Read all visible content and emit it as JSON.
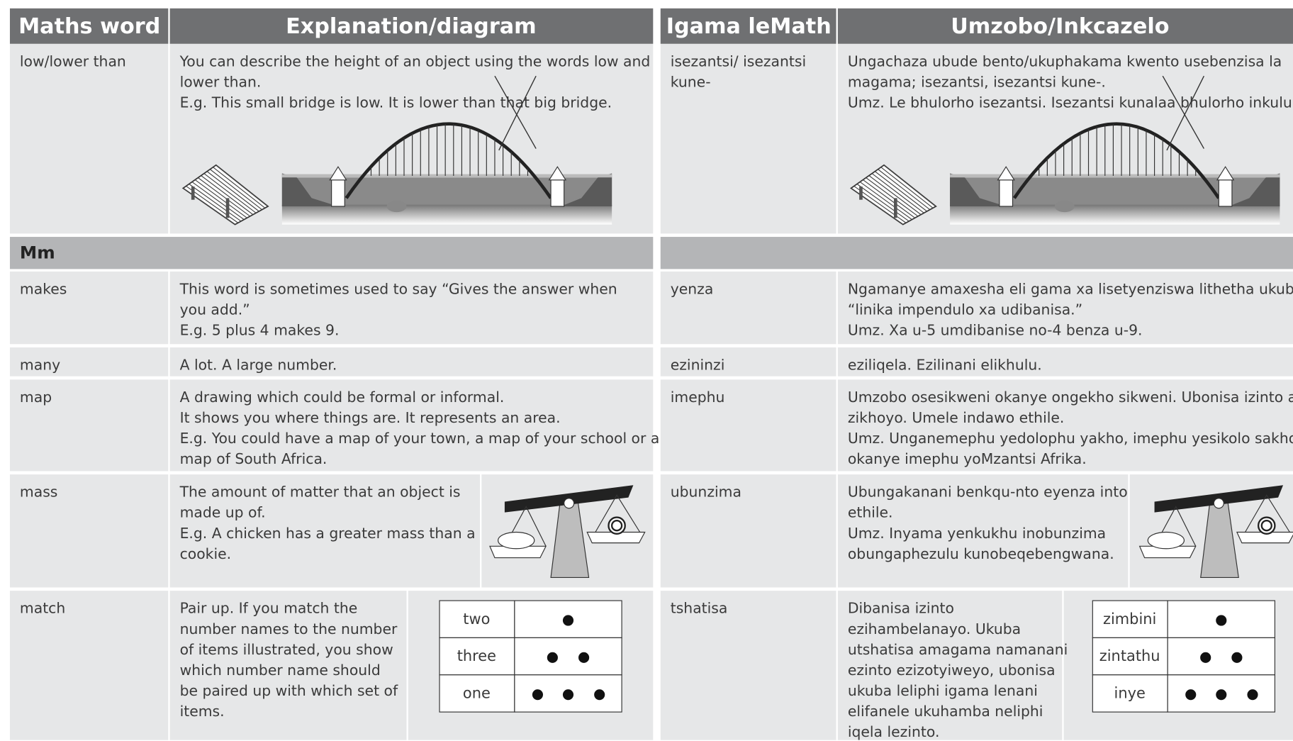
{
  "left": {
    "headers": [
      "Maths word",
      "Explanation/diagram"
    ],
    "section": "Mm",
    "rows": [
      {
        "word": [
          "low/lower than"
        ],
        "lines": [
          "You can describe the height of an object using the words low and",
          "lower than.",
          "E.g. This small bridge is low. It is lower than that big bridge."
        ]
      },
      {
        "word": [
          "makes"
        ],
        "lines": [
          "This word is sometimes used to say “Gives the answer when",
          "you add.”",
          "E.g. 5 plus 4 makes 9."
        ]
      },
      {
        "word": [
          "many"
        ],
        "lines": [
          "A lot. A large number."
        ]
      },
      {
        "word": [
          "map"
        ],
        "lines": [
          "A drawing which could be formal or informal.",
          "It shows you where things are. It represents an area.",
          "E.g. You could have a map of your town, a map of your school or a",
          "map of South Africa."
        ]
      },
      {
        "word": [
          "mass"
        ],
        "lines": [
          "The amount of matter that an object is",
          "made up of.",
          "E.g. A chicken has a greater mass than a",
          "cookie."
        ]
      },
      {
        "word": [
          "match"
        ],
        "lines": [
          "Pair up. If you match the",
          "number names to the number",
          "of items illustrated, you show",
          "which number name should",
          "be paired up with which set of",
          "items."
        ]
      }
    ],
    "match_table": [
      "two",
      "three",
      "one"
    ]
  },
  "right": {
    "headers": [
      "Igama leMath",
      "Umzobo/Inkcazelo"
    ],
    "rows": [
      {
        "word": [
          "isezantsi/ isezantsi",
          "kune-"
        ],
        "lines": [
          "Ungachaza ubude bento/ukuphakama kwento usebenzisa la",
          "magama; isezantsi, isezantsi kune-.",
          "Umz. Le bhulorho isezantsi. Isezantsi kunalaa bhulorho inkulu."
        ]
      },
      {
        "word": [
          "yenza"
        ],
        "lines": [
          "Ngamanye amaxesha eli gama xa lisetyenziswa lithetha ukuba",
          "“linika impendulo xa udibanisa.”",
          "Umz. Xa u-5 umdibanise no-4 benza u-9."
        ]
      },
      {
        "word": [
          "ezininzi"
        ],
        "lines": [
          "eziliqela. Ezilinani elikhulu."
        ]
      },
      {
        "word": [
          "imephu"
        ],
        "lines": [
          "Umzobo osesikweni okanye ongekho sikweni. Ubonisa izinto apho",
          "zikhoyo. Umele indawo ethile.",
          "Umz. Unganemephu yedolophu yakho, imephu yesikolo sakho",
          "okanye imephu yoMzantsi Afrika."
        ]
      },
      {
        "word": [
          "ubunzima"
        ],
        "lines": [
          "Ubungakanani benkqu-nto eyenza into",
          "ethile.",
          "Umz. Inyama yenkukhu inobunzima",
          "obungaphezulu kunobeqebengwana."
        ]
      },
      {
        "word": [
          "tshatisa"
        ],
        "lines": [
          "Dibanisa izinto",
          "ezihambelanayo. Ukuba",
          "utshatisa amagama namanani",
          "ezinto ezizotyiweyo, ubonisa",
          "ukuba leliphi igama lenani",
          "elifanele ukuhamba neliphi",
          "iqela lezinto."
        ]
      }
    ],
    "match_table": [
      "zimbini",
      "zintathu",
      "inye"
    ]
  }
}
